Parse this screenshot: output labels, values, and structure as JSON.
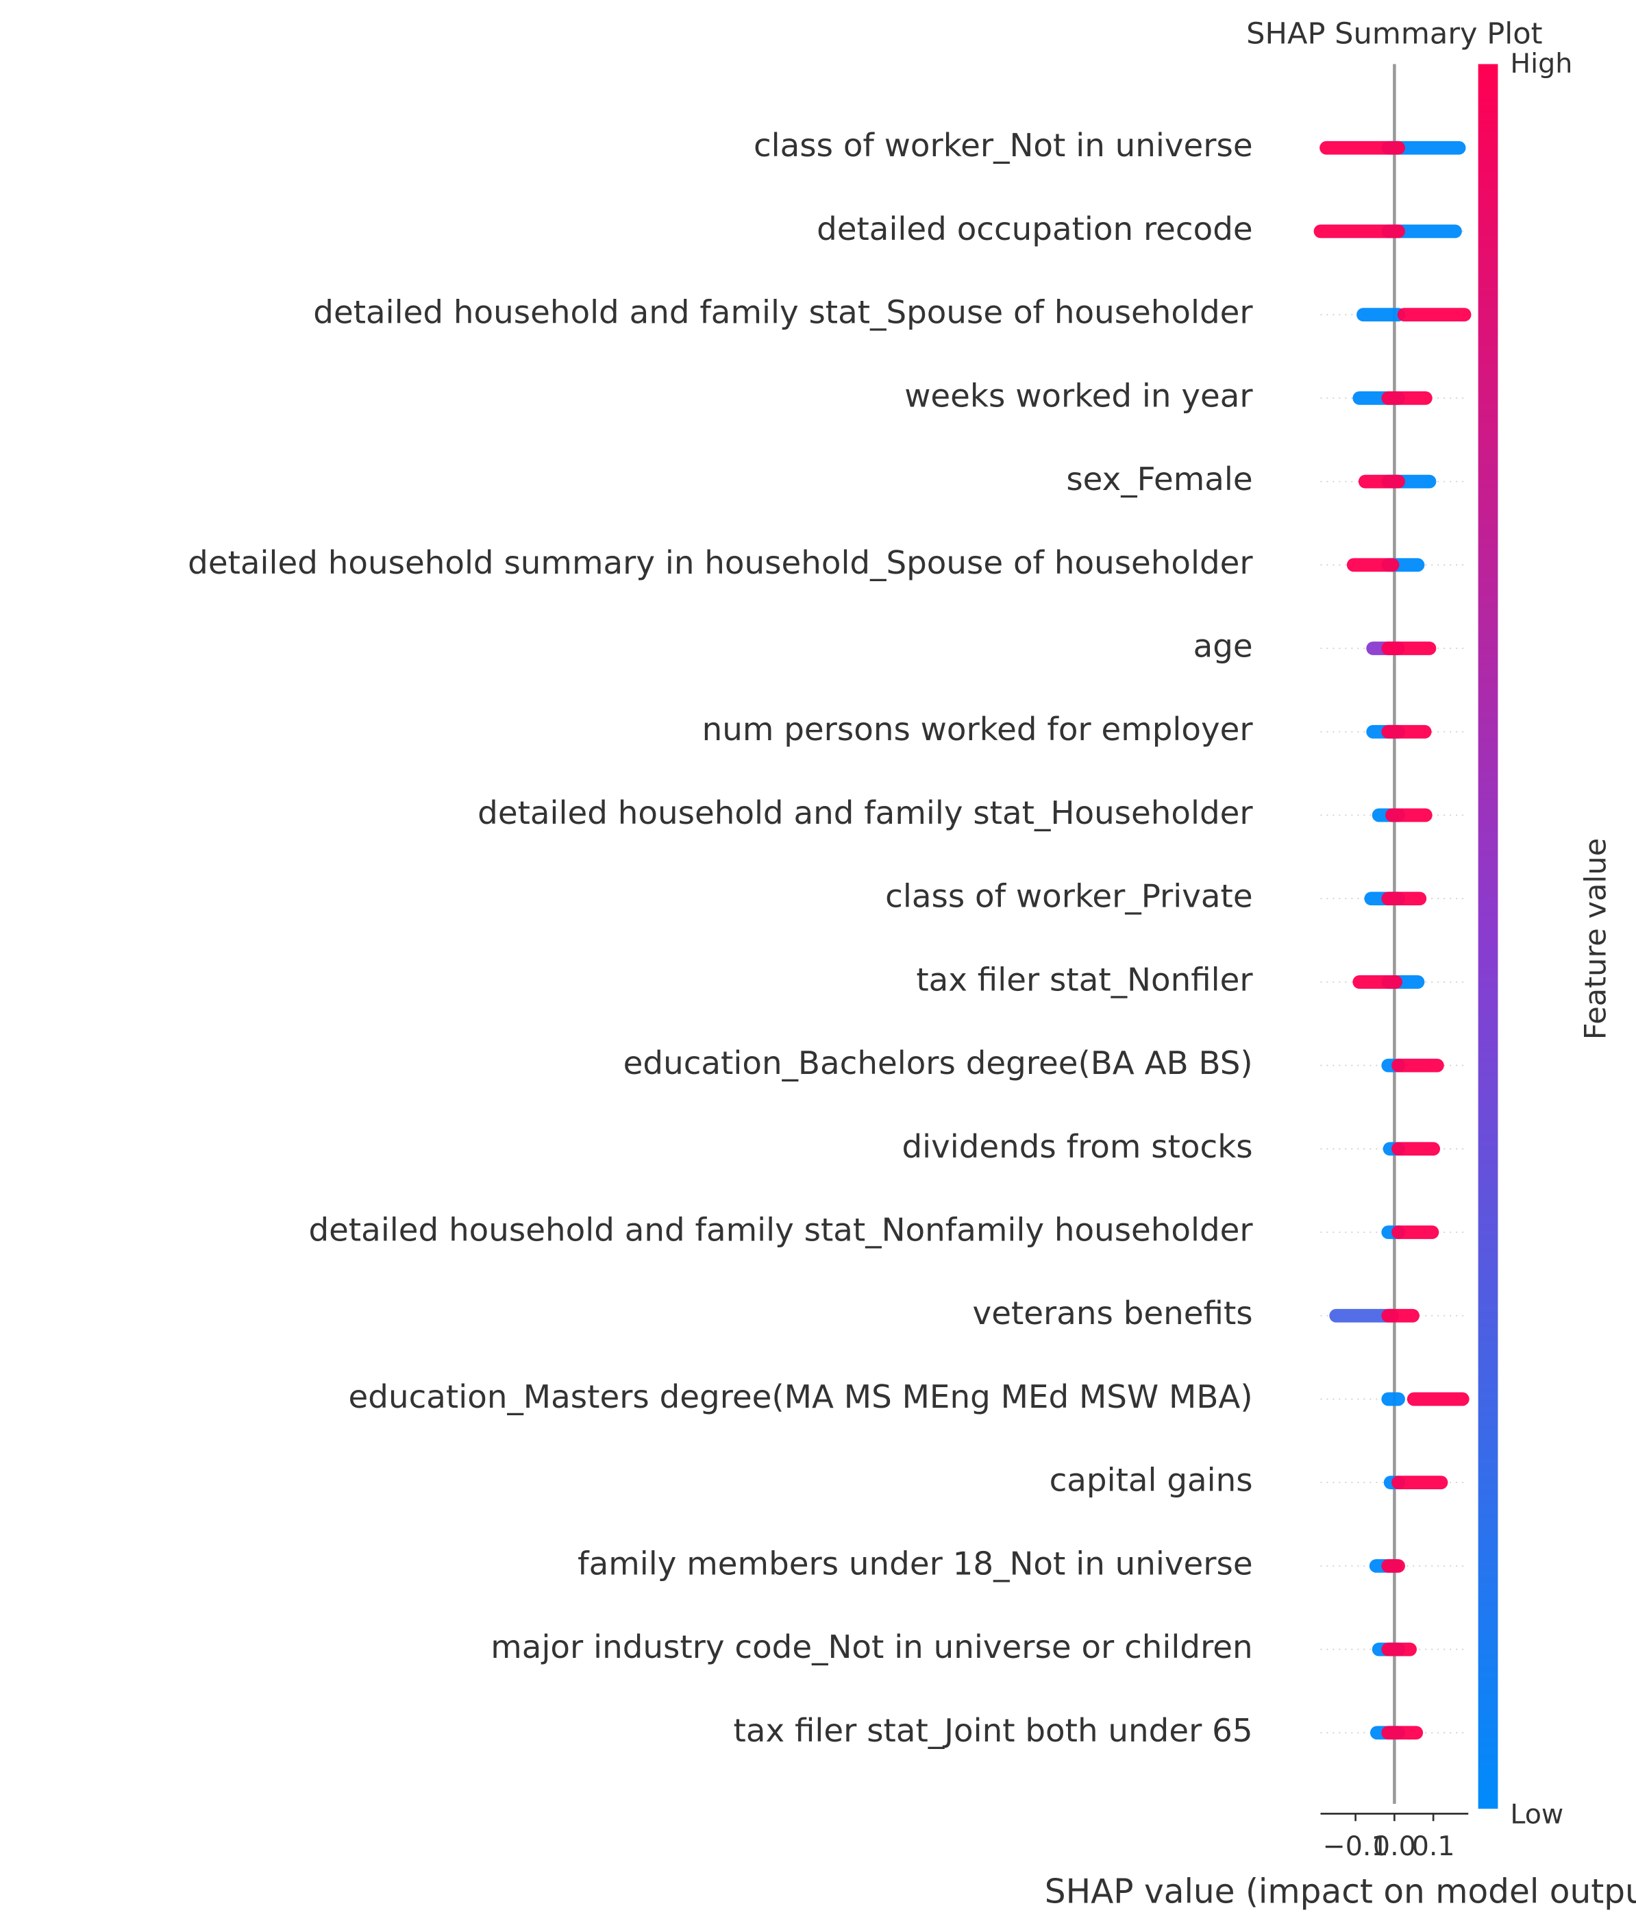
{
  "chart_data": {
    "type": "beeswarm",
    "title": "SHAP Summary Plot",
    "xlabel": "SHAP value (impact on model output)",
    "colorbar_label": "Feature value",
    "categories": [
      "class of worker_Not in universe",
      "detailed occupation recode",
      "detailed household and family stat_Spouse of householder",
      "weeks worked in year",
      "sex_Female",
      "detailed household summary in household_Spouse of householder",
      "age",
      "num persons worked for employer",
      "detailed household and family stat_Householder",
      "class of worker_Private",
      "tax filer stat_Nonfiler",
      "education_Bachelors degree(BA AB BS)",
      "dividends from stocks",
      "detailed household and family stat_Nonfamily householder",
      "veterans benefits",
      "education_Masters degree(MA MS MEng MEd MSW MBA)",
      "capital gains",
      "family members under 18_Not in universe",
      "major industry code_Not in universe or children",
      "tax filer stat_Joint both under 65"
    ],
    "series": [
      {
        "name": "Low",
        "color": "#008bfb",
        "colors": [
          "#008bfb",
          "#008bfb",
          "#008bfb",
          "#008bfb",
          "#008bfb",
          "#008bfb",
          "#8a3ccf",
          "#008bfb",
          "#008bfb",
          "#008bfb",
          "#008bfb",
          "#008bfb",
          "#008bfb",
          "#008bfb",
          "#4b67e6",
          "#008bfb",
          "#008bfb",
          "#008bfb",
          "#008bfb",
          "#008bfb"
        ],
        "values": [
          [
            -0.016,
            0.166
          ],
          [
            -0.016,
            0.156
          ],
          [
            -0.08,
            0.01
          ],
          [
            -0.09,
            0.01
          ],
          [
            -0.016,
            0.09
          ],
          [
            -0.016,
            0.06
          ],
          [
            -0.055,
            0.01
          ],
          [
            -0.055,
            0.01
          ],
          [
            -0.04,
            0.01
          ],
          [
            -0.06,
            0.01
          ],
          [
            -0.016,
            0.06
          ],
          [
            -0.016,
            0.01
          ],
          [
            -0.012,
            0.01
          ],
          [
            -0.016,
            0.01
          ],
          [
            -0.15,
            -0.006
          ],
          [
            -0.016,
            0.01
          ],
          [
            -0.01,
            0.01
          ],
          [
            -0.047,
            0.003
          ],
          [
            -0.04,
            0.01
          ],
          [
            -0.045,
            0.01
          ]
        ]
      },
      {
        "name": "High",
        "color": "#ff0052",
        "values": [
          [
            -0.175,
            0.01
          ],
          [
            -0.19,
            0.01
          ],
          [
            0.025,
            0.18
          ],
          [
            -0.016,
            0.08
          ],
          [
            -0.075,
            0.01
          ],
          [
            -0.105,
            -0.005
          ],
          [
            -0.016,
            0.09
          ],
          [
            -0.016,
            0.078
          ],
          [
            -0.006,
            0.08
          ],
          [
            -0.016,
            0.065
          ],
          [
            -0.09,
            0.003
          ],
          [
            0.01,
            0.11
          ],
          [
            0.01,
            0.1
          ],
          [
            0.01,
            0.097
          ],
          [
            -0.016,
            0.047
          ],
          [
            0.05,
            0.175
          ],
          [
            0.01,
            0.12
          ],
          [
            -0.016,
            0.01
          ],
          [
            -0.016,
            0.04
          ],
          [
            -0.016,
            0.056
          ]
        ]
      }
    ],
    "xlim": [
      -0.19,
      0.19
    ],
    "xticks": [
      {
        "value": -0.1,
        "label": "−0.1"
      },
      {
        "value": 0,
        "label": "0.0"
      },
      0.1
    ]
  }
}
